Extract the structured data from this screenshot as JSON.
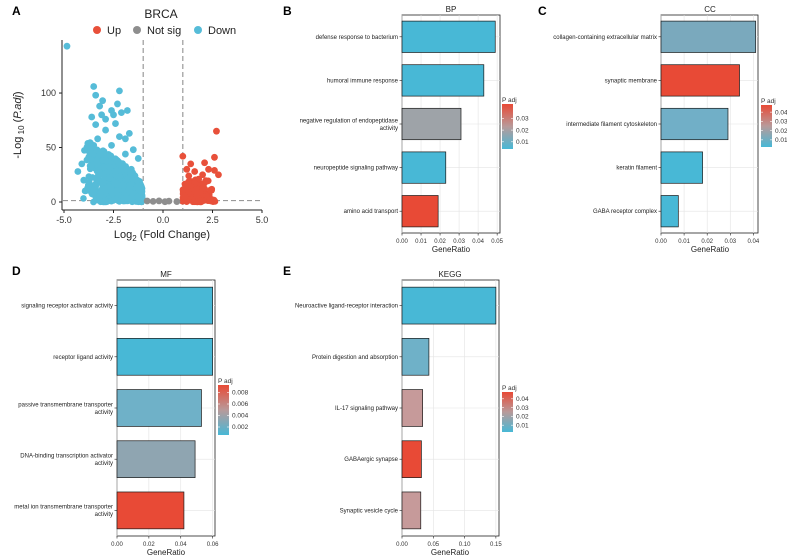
{
  "chart_data": [
    {
      "id": "A",
      "type": "scatter",
      "panel_label": "A",
      "title": "BRCA",
      "xlabel": "Log2 (Fold Change)",
      "xlabel_main": "Log",
      "xlabel_sub": "2",
      "xlabel_rest": " (Fold Change)",
      "ylabel": "-Log 10 (P.adj)",
      "ylabel_main": "-Log",
      "ylabel_sub": " 10",
      "ylabel_open": " (",
      "ylabel_italic": "P.adj",
      "ylabel_close": ")",
      "xlim": [
        -5,
        5
      ],
      "ylim": [
        0,
        145
      ],
      "xticks": [
        "-5.0",
        "-2.5",
        "0.0",
        "2.5",
        "5.0"
      ],
      "yticks": [
        "0",
        "50",
        "100"
      ],
      "thresholds": {
        "log2fc": [
          -1,
          1
        ],
        "neglog10p": 1.3
      },
      "legend": [
        {
          "label": "Up",
          "color": "#e8503a"
        },
        {
          "label": "Not sig",
          "color": "#8e8e8e"
        },
        {
          "label": "Down",
          "color": "#56bcd8"
        }
      ],
      "series": [
        {
          "name": "Down",
          "color": "#56bcd8",
          "points": [
            [
              -4.85,
              143
            ],
            [
              -3.5,
              106
            ],
            [
              -3.4,
              98
            ],
            [
              -3.05,
              93
            ],
            [
              -3.2,
              88
            ],
            [
              -2.2,
              102
            ],
            [
              -2.3,
              90
            ],
            [
              -3.1,
              80
            ],
            [
              -2.9,
              76
            ],
            [
              -2.6,
              84
            ],
            [
              -2.5,
              80
            ],
            [
              -2.1,
              82
            ],
            [
              -1.8,
              84
            ],
            [
              -3.6,
              78
            ],
            [
              -2.4,
              72
            ],
            [
              -3.4,
              71
            ],
            [
              -2.9,
              66
            ],
            [
              -2.2,
              60
            ],
            [
              -1.9,
              58
            ],
            [
              -1.7,
              63
            ],
            [
              -4.0,
              20
            ],
            [
              -3.8,
              13
            ],
            [
              -4.3,
              28
            ],
            [
              -4.1,
              35
            ],
            [
              -3.7,
              45
            ],
            [
              -3.5,
              52
            ],
            [
              -3.3,
              58
            ],
            [
              -1.5,
              48
            ],
            [
              -1.25,
              40
            ],
            [
              -1.6,
              30
            ],
            [
              -1.3,
              20
            ],
            [
              -1.1,
              10
            ],
            [
              -2.0,
              15
            ],
            [
              -2.7,
              22
            ],
            [
              -3.0,
              32
            ],
            [
              -2.3,
              38
            ],
            [
              -1.9,
              44
            ],
            [
              -3.2,
              46
            ],
            [
              -2.6,
              52
            ]
          ]
        },
        {
          "name": "Up",
          "color": "#e8503a",
          "points": [
            [
              2.7,
              65
            ],
            [
              2.6,
              41
            ],
            [
              2.1,
              36
            ],
            [
              2.3,
              30
            ],
            [
              2.6,
              29
            ],
            [
              2.0,
              25
            ],
            [
              2.8,
              25
            ],
            [
              1.8,
              21
            ],
            [
              2.2,
              19
            ],
            [
              1.6,
              17
            ],
            [
              1.4,
              14
            ],
            [
              1.2,
              16
            ],
            [
              1.1,
              12
            ],
            [
              1.5,
              10
            ],
            [
              1.3,
              8
            ],
            [
              1.1,
              5
            ],
            [
              1.7,
              6
            ],
            [
              1.9,
              9
            ],
            [
              2.4,
              11
            ],
            [
              2.0,
              13
            ],
            [
              1.3,
              24
            ],
            [
              1.2,
              30
            ],
            [
              1.4,
              35
            ],
            [
              1.0,
              42
            ],
            [
              1.6,
              28
            ]
          ]
        },
        {
          "name": "Not sig",
          "color": "#8e8e8e",
          "points": [
            [
              -0.5,
              0.6
            ],
            [
              0.3,
              0.8
            ],
            [
              0.7,
              0.4
            ],
            [
              -0.8,
              0.9
            ],
            [
              0.1,
              0.3
            ],
            [
              -0.2,
              1.0
            ]
          ]
        }
      ]
    },
    {
      "id": "B",
      "type": "bar",
      "panel_label": "B",
      "title": "BP",
      "xlabel": "GeneRatio",
      "xmax": 0.0515,
      "xticks": [
        0,
        0.01,
        0.02,
        0.03,
        0.04,
        0.05
      ],
      "xtick_labels": [
        "0.00",
        "0.01",
        "0.02",
        "0.03",
        "0.04",
        "0.05"
      ],
      "categories": [
        [
          "defense response to bacterium"
        ],
        [
          "humoral immune response"
        ],
        [
          "negative regulation of endopeptidase",
          "activity"
        ],
        [
          "neuropeptide signaling pathway"
        ],
        [
          "amino acid transport"
        ]
      ],
      "values": [
        0.049,
        0.043,
        0.031,
        0.023,
        0.019
      ],
      "colors": [
        "#48b8d6",
        "#48b8d6",
        "#9ea3a8",
        "#48b8d6",
        "#e84a36"
      ],
      "legend_title": "P adj",
      "legend_labels": [
        "0.03",
        "0.02",
        "0.01"
      ],
      "legend_ticks": [
        0.32,
        0.58,
        0.84
      ]
    },
    {
      "id": "C",
      "type": "bar",
      "panel_label": "C",
      "title": "CC",
      "xlabel": "GeneRatio",
      "xmax": 0.042,
      "xticks": [
        0,
        0.01,
        0.02,
        0.03,
        0.04
      ],
      "xtick_labels": [
        "0.00",
        "0.01",
        "0.02",
        "0.03",
        "0.04"
      ],
      "categories": [
        [
          "collagen-containing extracellular matrix"
        ],
        [
          "synaptic membrane"
        ],
        [
          "intermediate filament cytoskeleton"
        ],
        [
          "keratin filament"
        ],
        [
          "GABA receptor complex"
        ]
      ],
      "values": [
        0.041,
        0.034,
        0.029,
        0.018,
        0.0075
      ],
      "colors": [
        "#7aa9bd",
        "#e84a36",
        "#71afc7",
        "#48b8d6",
        "#48b8d6"
      ],
      "legend_title": "P adj",
      "legend_labels": [
        "0.04",
        "0.03",
        "0.02",
        "0.01"
      ],
      "legend_ticks": [
        0.17,
        0.39,
        0.61,
        0.83
      ]
    },
    {
      "id": "D",
      "type": "bar",
      "panel_label": "D",
      "title": "MF",
      "xlabel": "GeneRatio",
      "xmax": 0.0615,
      "xticks": [
        0,
        0.02,
        0.04,
        0.06
      ],
      "xtick_labels": [
        "0.00",
        "0.02",
        "0.04",
        "0.06"
      ],
      "categories": [
        [
          "signaling receptor activator activity"
        ],
        [
          "receptor ligand activity"
        ],
        [
          "passive transmembrane transporter",
          "activity"
        ],
        [
          "DNA-binding transcription activator",
          "activity"
        ],
        [
          "metal ion transmembrane transporter",
          "activity"
        ]
      ],
      "values": [
        0.06,
        0.06,
        0.053,
        0.049,
        0.042
      ],
      "colors": [
        "#48b8d6",
        "#48b8d6",
        "#6fb1c8",
        "#8fa5b1",
        "#e84a36"
      ],
      "legend_title": "P adj",
      "legend_labels": [
        "0.008",
        "0.006",
        "0.004",
        "0.002"
      ],
      "legend_ticks": [
        0.15,
        0.38,
        0.61,
        0.84
      ]
    },
    {
      "id": "E",
      "type": "bar",
      "panel_label": "E",
      "title": "KEGG",
      "xlabel": "GeneRatio",
      "xmax": 0.155,
      "xticks": [
        0,
        0.05,
        0.1,
        0.15
      ],
      "xtick_labels": [
        "0.00",
        "0.05",
        "0.10",
        "0.15"
      ],
      "categories": [
        [
          "Neuroactive ligand-receptor interaction"
        ],
        [
          "Protein digestion and absorption"
        ],
        [
          "IL-17 signaling pathway"
        ],
        [
          "GABAergic synapse"
        ],
        [
          "Synaptic vesicle cycle"
        ]
      ],
      "values": [
        0.15,
        0.043,
        0.033,
        0.031,
        0.03
      ],
      "colors": [
        "#48b8d6",
        "#6fb1c8",
        "#c69a9a",
        "#e84a36",
        "#c69a9a"
      ],
      "legend_title": "P adj",
      "legend_labels": [
        "0.04",
        "0.03",
        "0.02",
        "0.01"
      ],
      "legend_ticks": [
        0.17,
        0.39,
        0.61,
        0.83
      ]
    }
  ]
}
